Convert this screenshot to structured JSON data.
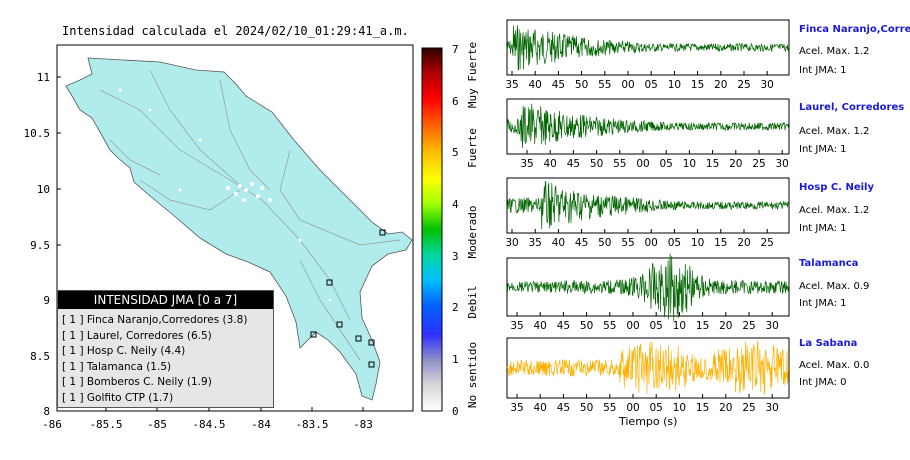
{
  "map": {
    "title": "Intensidad calculada el 2024/02/10_01:29:41_a.m.",
    "x_ticks": [
      "-86",
      "-85.5",
      "-85",
      "-84.5",
      "-84",
      "-83.5",
      "-83"
    ],
    "y_ticks": [
      "11",
      "10.5",
      "10",
      "9.5",
      "9",
      "8.5",
      "8"
    ],
    "land_color": "#b0ecec",
    "legend": {
      "title": "INTENSIDAD JMA [0 a 7]",
      "items": [
        "[ 1 ]  Finca Naranjo,Corredores (3.8)",
        "[ 1 ]  Laurel, Corredores (6.5)",
        "[ 1 ]  Hosp C. Neily (4.4)",
        "[ 1 ]  Talamanca (1.5)",
        "[ 1 ]  Bomberos C. Neily (1.9)",
        "[ 1 ]  Golfito CTP (1.7)"
      ]
    }
  },
  "colorbar": {
    "ticks": [
      "0",
      "1",
      "2",
      "3",
      "4",
      "5",
      "6",
      "7"
    ],
    "labels": [
      "No sentido",
      "Debil",
      "Moderado",
      "Fuerte",
      "Muy Fuerte"
    ]
  },
  "stations": [
    {
      "name": "Finca Naranjo,Corredor",
      "accel": "Acel. Max. 1.2",
      "jma": "Int JMA: 1",
      "color": "#006400",
      "ticks": [
        "35",
        "40",
        "45",
        "50",
        "55",
        "00",
        "05",
        "10",
        "15",
        "20",
        "25",
        "30"
      ]
    },
    {
      "name": "Laurel, Corredores",
      "accel": "Acel. Max. 1.2",
      "jma": "Int JMA: 1",
      "color": "#006400",
      "ticks": [
        "35",
        "40",
        "45",
        "50",
        "55",
        "00",
        "05",
        "10",
        "15",
        "20",
        "25",
        "30"
      ]
    },
    {
      "name": "Hosp C. Neily",
      "accel": "Acel. Max. 1.2",
      "jma": "Int JMA: 1",
      "color": "#006400",
      "ticks": [
        "30",
        "35",
        "40",
        "45",
        "50",
        "55",
        "00",
        "05",
        "10",
        "15",
        "20",
        "25"
      ]
    },
    {
      "name": "Talamanca",
      "accel": "Acel. Max. 0.9",
      "jma": "Int JMA: 1",
      "color": "#006400",
      "ticks": [
        "35",
        "40",
        "45",
        "50",
        "55",
        "00",
        "05",
        "10",
        "15",
        "20",
        "25",
        "30"
      ]
    },
    {
      "name": "La Sabana",
      "accel": "Acel. Max. 0.0",
      "jma": "Int JMA: 0",
      "color": "#ffb000",
      "ticks": [
        "35",
        "40",
        "45",
        "50",
        "55",
        "00",
        "05",
        "10",
        "15",
        "20",
        "25",
        "30"
      ]
    }
  ],
  "waves_xlabel": "Tiempo (s)"
}
